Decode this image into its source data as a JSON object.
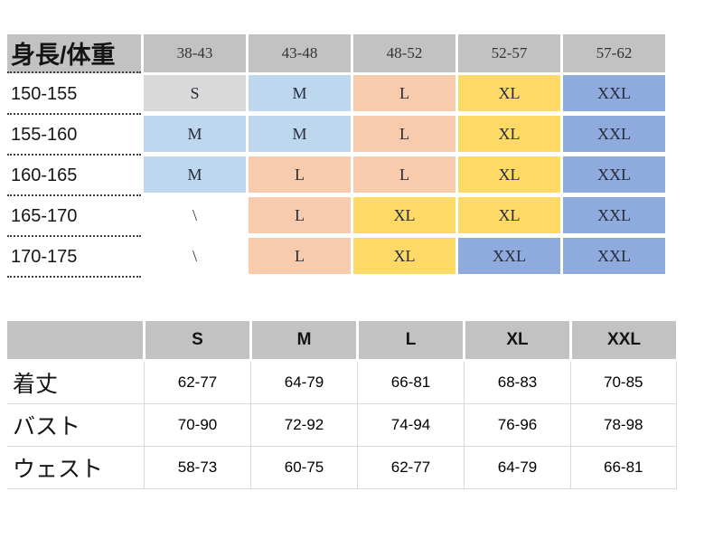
{
  "palette": {
    "header_bg": "#c2c2c2",
    "grid_line": "#d9d9d9",
    "dotted_line": "#3f3f3f"
  },
  "size_colors": {
    "S": "#d9d9d9",
    "M": "#bdd7ee",
    "L": "#f8cbad",
    "XL": "#ffd966",
    "XXL": "#8faadc",
    "\\": "#ffffff"
  },
  "size_chart": {
    "corner_label": "身長/体重",
    "weight_columns": [
      "38-43",
      "43-48",
      "48-52",
      "52-57",
      "57-62"
    ],
    "rows": [
      {
        "height": "150-155",
        "sizes": [
          "S",
          "M",
          "L",
          "XL",
          "XXL"
        ]
      },
      {
        "height": "155-160",
        "sizes": [
          "M",
          "M",
          "L",
          "XL",
          "XXL"
        ]
      },
      {
        "height": "160-165",
        "sizes": [
          "M",
          "L",
          "L",
          "XL",
          "XXL"
        ]
      },
      {
        "height": "165-170",
        "sizes": [
          "\\",
          "L",
          "XL",
          "XL",
          "XXL"
        ]
      },
      {
        "height": "170-175",
        "sizes": [
          "\\",
          "L",
          "XL",
          "XXL",
          "XXL"
        ]
      }
    ]
  },
  "measurement_table": {
    "corner_label": "",
    "size_columns": [
      "S",
      "M",
      "L",
      "XL",
      "XXL"
    ],
    "rows": [
      {
        "label": "着丈",
        "values": [
          "62-77",
          "64-79",
          "66-81",
          "68-83",
          "70-85"
        ]
      },
      {
        "label": "バスト",
        "values": [
          "70-90",
          "72-92",
          "74-94",
          "76-96",
          "78-98"
        ]
      },
      {
        "label": "ウェスト",
        "values": [
          "58-73",
          "60-75",
          "62-77",
          "64-79",
          "66-81"
        ]
      }
    ]
  }
}
